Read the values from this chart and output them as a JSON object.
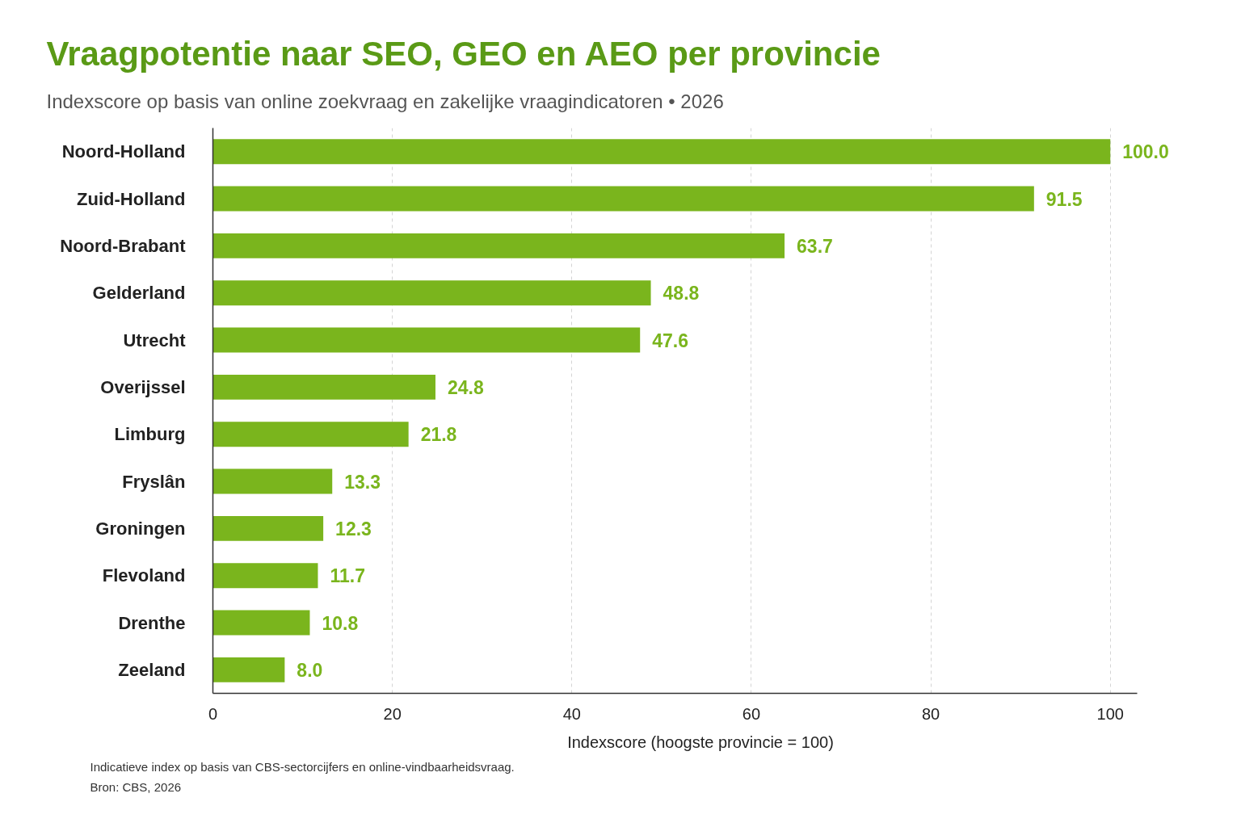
{
  "chart_data": {
    "type": "bar",
    "orientation": "horizontal",
    "title": "Vraagpotentie naar SEO, GEO en AEO per provincie",
    "subtitle": "Indexscore op basis van online zoekvraag en zakelijke vraagindicatoren • 2026",
    "xlabel": "Indexscore (hoogste provincie = 100)",
    "categories": [
      "Noord-Holland",
      "Zuid-Holland",
      "Noord-Brabant",
      "Gelderland",
      "Utrecht",
      "Overijssel",
      "Limburg",
      "Fryslân",
      "Groningen",
      "Flevoland",
      "Drenthe",
      "Zeeland"
    ],
    "values": [
      100.0,
      91.5,
      63.7,
      48.8,
      47.6,
      24.8,
      21.8,
      13.3,
      12.3,
      11.7,
      10.8,
      8.0
    ],
    "value_labels": [
      "100.0",
      "91.5",
      "63.7",
      "48.8",
      "47.6",
      "24.8",
      "21.8",
      "13.3",
      "12.3",
      "11.7",
      "10.8",
      "8.0"
    ],
    "color": "#7ab51d",
    "xlim": [
      0,
      103
    ],
    "xticks": [
      0,
      20,
      40,
      60,
      80,
      100
    ],
    "grid": "x",
    "annotations": [
      "Indicatieve index op basis van CBS-sectorcijfers en online-vindbaarheidsvraag.",
      "Bron: CBS, 2026"
    ]
  }
}
